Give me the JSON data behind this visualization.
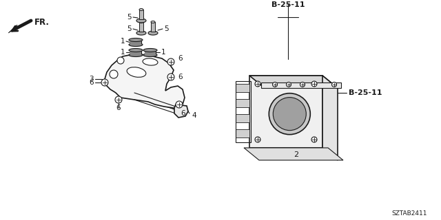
{
  "bg_color": "#ffffff",
  "line_color": "#1a1a1a",
  "title_text": "SZTAB2411",
  "fr_label": "FR.",
  "figsize": [
    6.4,
    3.2
  ],
  "dpi": 100,
  "B2511_top": "B-25-11",
  "B2511_right": "B-25-11",
  "label2": "2",
  "label3": "3",
  "label4": "4"
}
